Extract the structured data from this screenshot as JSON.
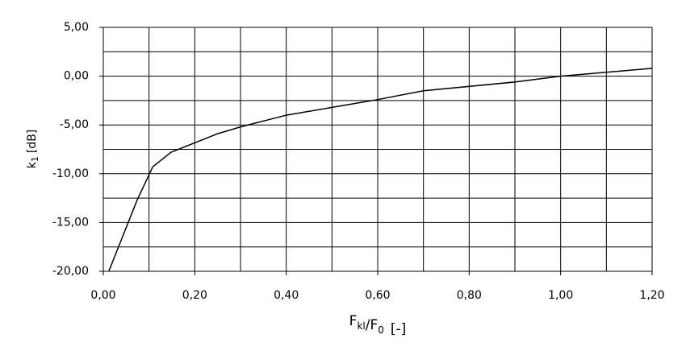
{
  "chart_data": {
    "type": "line",
    "xlabel": [
      {
        "text": "F",
        "sub": "kl"
      },
      {
        "text": "/F",
        "sub": "0"
      },
      {
        "text": "[-]"
      }
    ],
    "ylabel": {
      "text": "k",
      "sub": "1",
      "unit": "[dB]"
    },
    "x": [
      0.012,
      0.074,
      0.108,
      0.148,
      0.25,
      0.3,
      0.4,
      0.6,
      0.7,
      0.9,
      1.0,
      1.2
    ],
    "values": [
      -20,
      -12.7,
      -9.3,
      -7.8,
      -5.9,
      -5.2,
      -4.0,
      -2.4,
      -1.5,
      -0.6,
      0.0,
      0.8
    ],
    "color": "#000000",
    "xlim": [
      0,
      1.2
    ],
    "ylim": [
      -20,
      5
    ],
    "xticks": [
      {
        "value": 0,
        "label": "0,00"
      },
      {
        "value": 0.2,
        "label": "0,20"
      },
      {
        "value": 0.4,
        "label": "0,40"
      },
      {
        "value": 0.6,
        "label": "0,60"
      },
      {
        "value": 0.8,
        "label": "0,80"
      },
      {
        "value": 1.0,
        "label": "1,00"
      },
      {
        "value": 1.2,
        "label": "1,20"
      }
    ],
    "yticks": [
      {
        "value": 5,
        "label": "5,00"
      },
      {
        "value": 0,
        "label": "0,00"
      },
      {
        "value": -5,
        "label": "-5,00"
      },
      {
        "value": -10,
        "label": "-10,00"
      },
      {
        "value": -15,
        "label": "-15,00"
      },
      {
        "value": -20,
        "label": "-20,00"
      }
    ],
    "x_minor_grid": [
      0.1,
      0.3,
      0.5,
      0.7,
      0.9,
      1.1
    ],
    "y_minor_grid": [
      2.5,
      -2.5,
      -7.5,
      -12.5,
      -17.5
    ],
    "grid": true
  }
}
